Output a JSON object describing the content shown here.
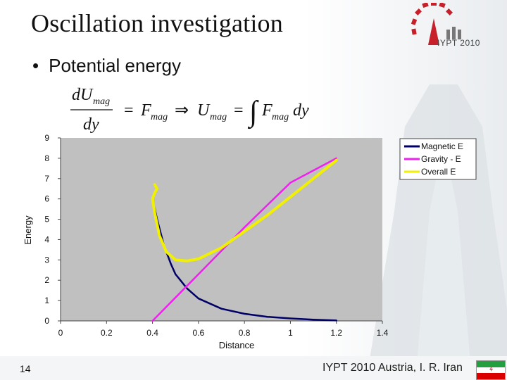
{
  "slide": {
    "title": "Oscillation investigation",
    "bullet": "Potential energy",
    "slide_number": "14",
    "footer": "IYPT 2010 Austria, I. R. Iran",
    "logo_text": "IYPT 2010"
  },
  "colors": {
    "magnetic": "#000066",
    "gravity": "#ee22ee",
    "overall": "#f0f000",
    "plot_bg": "#c0c0c0"
  },
  "chart_data": {
    "type": "line",
    "xlabel": "Distance",
    "ylabel": "Energy",
    "xlim": [
      0,
      1.4
    ],
    "ylim": [
      0,
      9
    ],
    "x_ticks": [
      "0",
      "0.2",
      "0.4",
      "0.6",
      "0.8",
      "1",
      "1.2",
      "1.4"
    ],
    "y_ticks": [
      "0",
      "1",
      "2",
      "3",
      "4",
      "5",
      "6",
      "7",
      "8",
      "9"
    ],
    "legend_position": "top-right",
    "series": [
      {
        "name": "Magnetic E",
        "x": [
          0.4,
          0.42,
          0.45,
          0.48,
          0.5,
          0.55,
          0.6,
          0.7,
          0.8,
          0.9,
          1.0,
          1.1,
          1.2
        ],
        "y": [
          6.0,
          5.0,
          3.7,
          2.8,
          2.3,
          1.6,
          1.1,
          0.6,
          0.35,
          0.2,
          0.12,
          0.06,
          0.02
        ]
      },
      {
        "name": "Gravity - E",
        "x": [
          0.4,
          0.6,
          0.8,
          1.0,
          1.2
        ],
        "y": [
          0.0,
          2.3,
          4.6,
          6.8,
          8.0
        ]
      },
      {
        "name": "Overall E",
        "x": [
          0.41,
          0.42,
          0.41,
          0.4,
          0.41,
          0.43,
          0.46,
          0.5,
          0.55,
          0.6,
          0.7,
          0.8,
          0.9,
          1.0,
          1.1,
          1.2
        ],
        "y": [
          6.7,
          6.5,
          6.3,
          6.0,
          5.3,
          4.2,
          3.4,
          3.0,
          2.95,
          3.05,
          3.6,
          4.4,
          5.2,
          6.1,
          7.0,
          7.9
        ]
      }
    ]
  }
}
